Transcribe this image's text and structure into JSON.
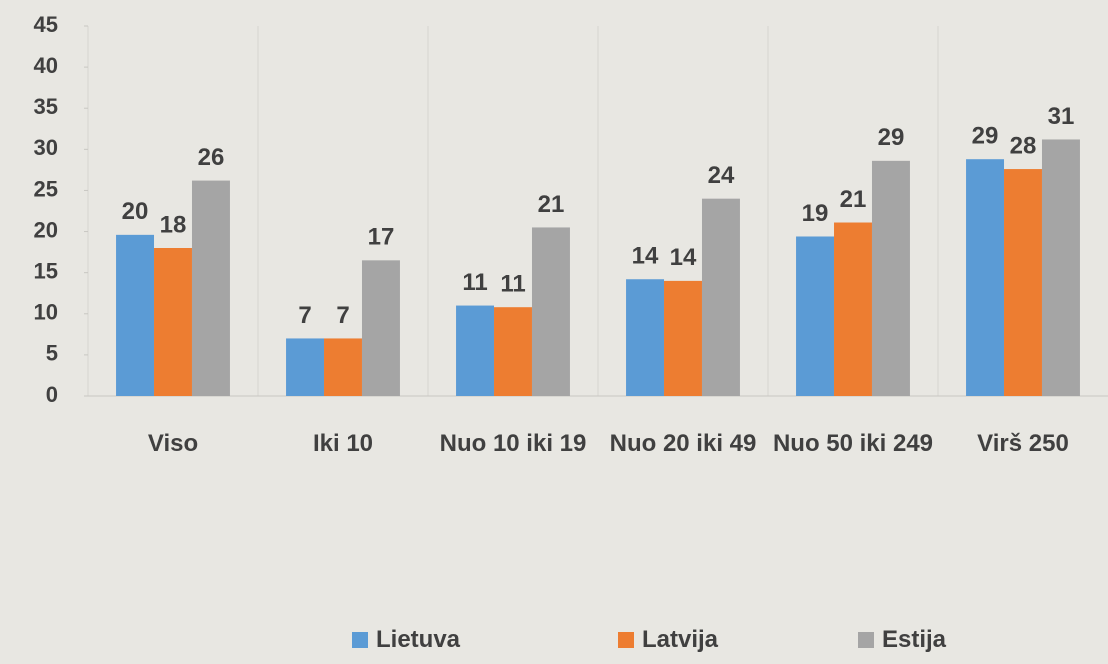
{
  "chart_data": {
    "type": "bar",
    "categories": [
      "Viso",
      "Iki 10",
      "Nuo 10 iki 19",
      "Nuo 20 iki 49",
      "Nuo 50 iki 249",
      "Virš 250"
    ],
    "series": [
      {
        "name": "Lietuva",
        "color": "#5b9bd5",
        "values": [
          19.6,
          7,
          11,
          14.2,
          19.4,
          28.8
        ],
        "value_labels": [
          "20",
          "7",
          "11",
          "14",
          "19",
          "29"
        ]
      },
      {
        "name": "Latvija",
        "color": "#ed7d31",
        "values": [
          18,
          7,
          10.8,
          14,
          21.1,
          27.6
        ],
        "value_labels": [
          "18",
          "7",
          "11",
          "14",
          "21",
          "28"
        ]
      },
      {
        "name": "Estija",
        "color": "#a5a5a5",
        "values": [
          26.2,
          16.5,
          20.5,
          24,
          28.6,
          31.2
        ],
        "value_labels": [
          "26",
          "17",
          "21",
          "24",
          "29",
          "31"
        ]
      }
    ],
    "ylim": [
      0,
      45
    ],
    "yticks": [
      0,
      5,
      10,
      15,
      20,
      25,
      30,
      35,
      40,
      45
    ]
  }
}
